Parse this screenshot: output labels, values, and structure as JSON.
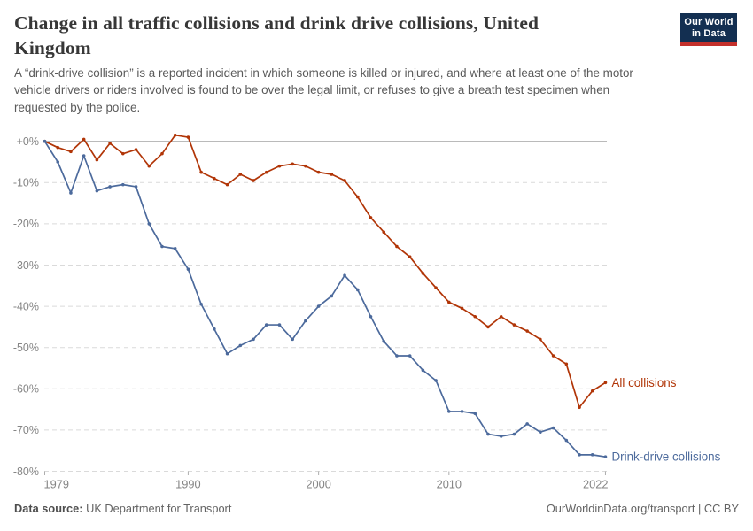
{
  "header": {
    "title_line1": "Change in all traffic collisions and drink drive collisions, United",
    "title_line2": "Kingdom",
    "logo": {
      "line1": "Our World",
      "line2": "in Data"
    }
  },
  "subtitle_lines": [
    "A “drink-drive collision” is a reported incident in which someone is killed or injured, and where at least one of the motor",
    "vehicle drivers or riders involved is found to be over the legal limit, or refuses to give a breath test specimen when",
    "requested by the police."
  ],
  "footer": {
    "source_label": "Data source:",
    "source_value": " UK Department for Transport",
    "rights": "OurWorldinData.org/transport | CC BY"
  },
  "colors": {
    "all_collisions": "#B13507",
    "drink_drive": "#4C6A9C",
    "zero_line": "#a3a3a3",
    "gridline": "#dadada",
    "axis_text": "#858585",
    "tick": "#adadad"
  },
  "chart_data": {
    "type": "line",
    "title": "Change in all traffic collisions and drink drive collisions, United Kingdom",
    "x": [
      1979,
      1980,
      1981,
      1982,
      1983,
      1984,
      1985,
      1986,
      1987,
      1988,
      1989,
      1990,
      1991,
      1992,
      1993,
      1994,
      1995,
      1996,
      1997,
      1998,
      1999,
      2000,
      2001,
      2002,
      2003,
      2004,
      2005,
      2006,
      2007,
      2008,
      2009,
      2010,
      2011,
      2012,
      2013,
      2014,
      2015,
      2016,
      2017,
      2018,
      2019,
      2020,
      2021,
      2022
    ],
    "series": [
      {
        "name": "All collisions",
        "color": "#B13507",
        "values": [
          0,
          -1.5,
          -2.5,
          0.5,
          -4.5,
          -0.5,
          -3,
          -2,
          -6,
          -3,
          1.5,
          1,
          -7.5,
          -9,
          -10.5,
          -8,
          -9.5,
          -7.5,
          -6,
          -5.5,
          -6,
          -7.5,
          -8,
          -9.5,
          -13.5,
          -18.5,
          -22,
          -25.5,
          -28,
          -32,
          -35.5,
          -39,
          -40.5,
          -42.5,
          -45,
          -42.5,
          -44.5,
          -46,
          -48,
          -52,
          -54,
          -64.5,
          -60.5,
          -58.5
        ]
      },
      {
        "name": "Drink-drive collisions",
        "color": "#4C6A9C",
        "values": [
          0,
          -5,
          -12.5,
          -3.5,
          -12,
          -11,
          -10.5,
          -11,
          -20,
          -25.5,
          -26,
          -31,
          -39.5,
          -45.5,
          -51.5,
          -49.5,
          -48,
          -44.5,
          -44.5,
          -48,
          -43.5,
          -40,
          -37.5,
          -32.5,
          -36,
          -42.5,
          -48.5,
          -52,
          -52,
          -55.5,
          -58,
          -65.5,
          -65.5,
          -66,
          -71,
          -71.5,
          -71,
          -68.5,
          -70.5,
          -69.5,
          -72.5,
          -76,
          -76,
          -76.5
        ]
      }
    ],
    "unit": "%",
    "yticks": [
      0,
      -10,
      -20,
      -30,
      -40,
      -50,
      -60,
      -70,
      -80
    ],
    "ytick_labels": [
      "+0%",
      "-10%",
      "-20%",
      "-30%",
      "-40%",
      "-50%",
      "-60%",
      "-70%",
      "-80%"
    ],
    "xticks": [
      1979,
      1990,
      2000,
      2010,
      2022
    ],
    "ylim": [
      -80,
      2
    ],
    "grid": "horizontal-dashed",
    "zero_line": "solid",
    "legend_position": "line-end-labels"
  }
}
